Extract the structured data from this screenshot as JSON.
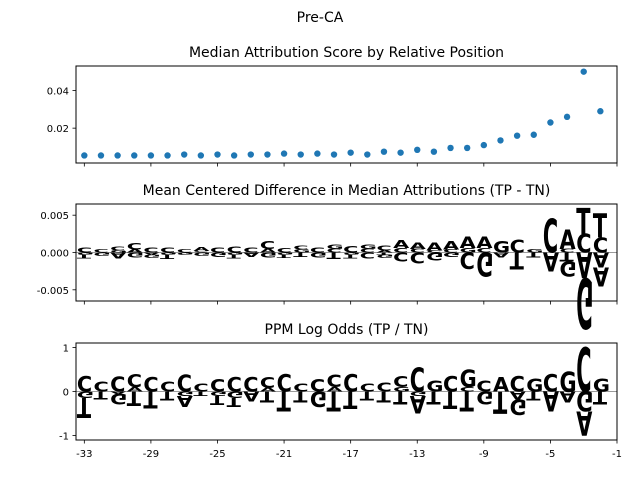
{
  "figure": {
    "suptitle": "Pre-CA"
  },
  "colors": {
    "A": "#008000",
    "C": "#0000ff",
    "G": "#ffa500",
    "T": "#ff0000",
    "dots": "#1f77b4"
  },
  "chart_data": [
    {
      "type": "scatter",
      "title": "Median Attribution Score by Relative Position",
      "x": [
        -33,
        -32,
        -31,
        -30,
        -29,
        -28,
        -27,
        -26,
        -25,
        -24,
        -23,
        -22,
        -21,
        -20,
        -19,
        -18,
        -17,
        -16,
        -15,
        -14,
        -13,
        -12,
        -11,
        -10,
        -9,
        -8,
        -7,
        -6,
        -5,
        -4,
        -3,
        -2
      ],
      "y": [
        0.0055,
        0.0055,
        0.0055,
        0.0055,
        0.0055,
        0.0055,
        0.006,
        0.0055,
        0.006,
        0.0055,
        0.006,
        0.006,
        0.0065,
        0.006,
        0.0065,
        0.006,
        0.007,
        0.006,
        0.0075,
        0.007,
        0.0085,
        0.0075,
        0.0095,
        0.0095,
        0.011,
        0.0135,
        0.016,
        0.0165,
        0.023,
        0.026,
        0.05,
        0.029
      ],
      "ylim": [
        0.0015,
        0.053
      ],
      "yticks": [
        "0.02",
        "0.04"
      ]
    },
    {
      "type": "sequence-logo",
      "title": "Mean Centered Difference in Median Attributions (TP - TN)",
      "ylim": [
        -0.0065,
        0.0065
      ],
      "yticks": [
        "0.005",
        "0.000",
        "-0.005"
      ],
      "positions": [
        {
          "x": -33,
          "letters": [
            {
              "b": "C",
              "h": 0.0007
            },
            {
              "b": "G",
              "h": -0.0003
            },
            {
              "b": "T",
              "h": -0.0005
            }
          ]
        },
        {
          "x": -32,
          "letters": [
            {
              "b": "C",
              "h": 0.0004
            },
            {
              "b": "G",
              "h": -0.0004
            }
          ]
        },
        {
          "x": -31,
          "letters": [
            {
              "b": "C",
              "h": 0.0005
            },
            {
              "b": "G",
              "h": 0.0003
            },
            {
              "b": "A",
              "h": -0.0008
            }
          ]
        },
        {
          "x": -30,
          "letters": [
            {
              "b": "C",
              "h": 0.0009
            },
            {
              "b": "A",
              "h": 0.0004
            },
            {
              "b": "G",
              "h": -0.0007
            }
          ]
        },
        {
          "x": -29,
          "letters": [
            {
              "b": "C",
              "h": 0.0007
            },
            {
              "b": "A",
              "h": -0.0003
            },
            {
              "b": "G",
              "h": -0.0004
            }
          ]
        },
        {
          "x": -28,
          "letters": [
            {
              "b": "C",
              "h": 0.0007
            },
            {
              "b": "G",
              "h": -0.0003
            },
            {
              "b": "T",
              "h": -0.0006
            }
          ]
        },
        {
          "x": -27,
          "letters": [
            {
              "b": "C",
              "h": 0.0004
            },
            {
              "b": "G",
              "h": -0.0003
            }
          ]
        },
        {
          "x": -26,
          "letters": [
            {
              "b": "A",
              "h": 0.0005
            },
            {
              "b": "C",
              "h": 0.0002
            },
            {
              "b": "G",
              "h": -0.0004
            }
          ]
        },
        {
          "x": -25,
          "letters": [
            {
              "b": "C",
              "h": 0.0007
            },
            {
              "b": "G",
              "h": -0.0006
            }
          ]
        },
        {
          "x": -24,
          "letters": [
            {
              "b": "C",
              "h": 0.0008
            },
            {
              "b": "G",
              "h": -0.0003
            },
            {
              "b": "T",
              "h": -0.0005
            }
          ]
        },
        {
          "x": -23,
          "letters": [
            {
              "b": "C",
              "h": 0.0007
            },
            {
              "b": "A",
              "h": -0.0006
            }
          ]
        },
        {
          "x": -22,
          "letters": [
            {
              "b": "C",
              "h": 0.001
            },
            {
              "b": "A",
              "h": 0.0005
            },
            {
              "b": "G",
              "h": -0.0007
            }
          ]
        },
        {
          "x": -21,
          "letters": [
            {
              "b": "C",
              "h": 0.0006
            },
            {
              "b": "G",
              "h": -0.0003
            },
            {
              "b": "T",
              "h": -0.0004
            }
          ]
        },
        {
          "x": -20,
          "letters": [
            {
              "b": "C",
              "h": 0.0005
            },
            {
              "b": "G",
              "h": 0.0004
            },
            {
              "b": "T",
              "h": -0.0006
            }
          ]
        },
        {
          "x": -19,
          "letters": [
            {
              "b": "C",
              "h": 0.0007
            },
            {
              "b": "G",
              "h": -0.0007
            }
          ]
        },
        {
          "x": -18,
          "letters": [
            {
              "b": "G",
              "h": 0.0006
            },
            {
              "b": "C",
              "h": 0.0005
            },
            {
              "b": "T",
              "h": -0.0009
            }
          ]
        },
        {
          "x": -17,
          "letters": [
            {
              "b": "C",
              "h": 0.0009
            },
            {
              "b": "G",
              "h": -0.0003
            },
            {
              "b": "T",
              "h": -0.0005
            }
          ]
        },
        {
          "x": -16,
          "letters": [
            {
              "b": "G",
              "h": 0.0006
            },
            {
              "b": "C",
              "h": 0.0005
            },
            {
              "b": "C",
              "h": -0.0008
            }
          ]
        },
        {
          "x": -15,
          "letters": [
            {
              "b": "C",
              "h": 0.0007
            },
            {
              "b": "A",
              "h": 0.0003
            },
            {
              "b": "G",
              "h": -0.0004
            },
            {
              "b": "T",
              "h": -0.0003
            }
          ]
        },
        {
          "x": -14,
          "letters": [
            {
              "b": "A",
              "h": 0.001
            },
            {
              "b": "C",
              "h": 0.0006
            },
            {
              "b": "C",
              "h": -0.0012
            }
          ]
        },
        {
          "x": -13,
          "letters": [
            {
              "b": "A",
              "h": 0.0009
            },
            {
              "b": "C",
              "h": 0.0005
            },
            {
              "b": "C",
              "h": -0.0015
            }
          ]
        },
        {
          "x": -12,
          "letters": [
            {
              "b": "A",
              "h": 0.001
            },
            {
              "b": "C",
              "h": 0.0003
            },
            {
              "b": "G",
              "h": -0.001
            }
          ]
        },
        {
          "x": -11,
          "letters": [
            {
              "b": "A",
              "h": 0.0011
            },
            {
              "b": "C",
              "h": 0.0004
            },
            {
              "b": "G",
              "h": -0.0006
            }
          ]
        },
        {
          "x": -10,
          "letters": [
            {
              "b": "A",
              "h": 0.0016
            },
            {
              "b": "G",
              "h": 0.0006
            },
            {
              "b": "C",
              "h": -0.0022
            }
          ]
        },
        {
          "x": -9,
          "letters": [
            {
              "b": "A",
              "h": 0.0016
            },
            {
              "b": "C",
              "h": 0.0006
            },
            {
              "b": "G",
              "h": -0.0032
            }
          ]
        },
        {
          "x": -8,
          "letters": [
            {
              "b": "G",
              "h": 0.0016
            },
            {
              "b": "A",
              "h": -0.0007
            }
          ]
        },
        {
          "x": -7,
          "letters": [
            {
              "b": "C",
              "h": 0.0017
            },
            {
              "b": "T",
              "h": -0.0023
            }
          ]
        },
        {
          "x": -6,
          "letters": [
            {
              "b": "G",
              "h": 0.0004
            },
            {
              "b": "T",
              "h": -0.0007
            }
          ]
        },
        {
          "x": -5,
          "letters": [
            {
              "b": "C",
              "h": 0.0045
            },
            {
              "b": "A",
              "h": -0.0025
            }
          ]
        },
        {
          "x": -4,
          "letters": [
            {
              "b": "A",
              "h": 0.0026
            },
            {
              "b": "C",
              "h": 0.0005
            },
            {
              "b": "G",
              "h": -0.002
            },
            {
              "b": "T",
              "h": -0.0012
            }
          ]
        },
        {
          "x": -3,
          "letters": [
            {
              "b": "T",
              "h": 0.0035
            },
            {
              "b": "C",
              "h": 0.0025
            },
            {
              "b": "A",
              "h": -0.0035
            },
            {
              "b": "G",
              "h": -0.0068
            }
          ]
        },
        {
          "x": -2,
          "letters": [
            {
              "b": "T",
              "h": 0.0032
            },
            {
              "b": "C",
              "h": 0.002
            },
            {
              "b": "A",
              "h": -0.002
            },
            {
              "b": "A",
              "h": -0.0025
            }
          ]
        }
      ]
    },
    {
      "type": "sequence-logo",
      "title": "PPM Log Odds (TP / TN)",
      "ylim": [
        -1.1,
        1.1
      ],
      "yticks": [
        "1",
        "0",
        "-1"
      ],
      "xticks": [
        "-33",
        "-29",
        "-25",
        "-21",
        "-17",
        "-13",
        "-9",
        "-5",
        "-1"
      ],
      "positions": [
        {
          "x": -33,
          "letters": [
            {
              "b": "C",
              "h": 0.35
            },
            {
              "b": "G",
              "h": -0.15
            },
            {
              "b": "T",
              "h": -0.45
            }
          ]
        },
        {
          "x": -32,
          "letters": [
            {
              "b": "C",
              "h": 0.22
            },
            {
              "b": "T",
              "h": -0.18
            }
          ]
        },
        {
          "x": -31,
          "letters": [
            {
              "b": "C",
              "h": 0.34
            },
            {
              "b": "G",
              "h": -0.25
            },
            {
              "b": "A",
              "h": -0.05
            }
          ]
        },
        {
          "x": -30,
          "letters": [
            {
              "b": "C",
              "h": 0.3
            },
            {
              "b": "A",
              "h": 0.1
            },
            {
              "b": "T",
              "h": -0.33
            }
          ]
        },
        {
          "x": -29,
          "letters": [
            {
              "b": "C",
              "h": 0.33
            },
            {
              "b": "T",
              "h": -0.38
            }
          ]
        },
        {
          "x": -28,
          "letters": [
            {
              "b": "C",
              "h": 0.22
            },
            {
              "b": "T",
              "h": -0.2
            }
          ]
        },
        {
          "x": -27,
          "letters": [
            {
              "b": "C",
              "h": 0.38
            },
            {
              "b": "G",
              "h": -0.1
            },
            {
              "b": "A",
              "h": -0.25
            }
          ]
        },
        {
          "x": -26,
          "letters": [
            {
              "b": "C",
              "h": 0.17
            },
            {
              "b": "T",
              "h": -0.1
            }
          ]
        },
        {
          "x": -25,
          "letters": [
            {
              "b": "C",
              "h": 0.28
            },
            {
              "b": "G",
              "h": -0.1
            },
            {
              "b": "T",
              "h": -0.2
            }
          ]
        },
        {
          "x": -24,
          "letters": [
            {
              "b": "C",
              "h": 0.33
            },
            {
              "b": "G",
              "h": -0.15
            },
            {
              "b": "T",
              "h": -0.2
            }
          ]
        },
        {
          "x": -23,
          "letters": [
            {
              "b": "C",
              "h": 0.32
            },
            {
              "b": "A",
              "h": -0.22
            }
          ]
        },
        {
          "x": -22,
          "letters": [
            {
              "b": "C",
              "h": 0.25
            },
            {
              "b": "A",
              "h": 0.08
            },
            {
              "b": "T",
              "h": -0.25
            }
          ]
        },
        {
          "x": -21,
          "letters": [
            {
              "b": "C",
              "h": 0.4
            },
            {
              "b": "T",
              "h": -0.45
            }
          ]
        },
        {
          "x": -20,
          "letters": [
            {
              "b": "C",
              "h": 0.17
            },
            {
              "b": "T",
              "h": -0.25
            }
          ]
        },
        {
          "x": -19,
          "letters": [
            {
              "b": "C",
              "h": 0.28
            },
            {
              "b": "G",
              "h": -0.35
            }
          ]
        },
        {
          "x": -18,
          "letters": [
            {
              "b": "C",
              "h": 0.28
            },
            {
              "b": "A",
              "h": 0.1
            },
            {
              "b": "T",
              "h": -0.45
            }
          ]
        },
        {
          "x": -17,
          "letters": [
            {
              "b": "C",
              "h": 0.4
            },
            {
              "b": "T",
              "h": -0.4
            }
          ]
        },
        {
          "x": -16,
          "letters": [
            {
              "b": "C",
              "h": 0.17
            },
            {
              "b": "T",
              "h": -0.2
            }
          ]
        },
        {
          "x": -15,
          "letters": [
            {
              "b": "C",
              "h": 0.2
            },
            {
              "b": "T",
              "h": -0.25
            }
          ]
        },
        {
          "x": -14,
          "letters": [
            {
              "b": "C",
              "h": 0.25
            },
            {
              "b": "G",
              "h": 0.1
            },
            {
              "b": "T",
              "h": -0.3
            }
          ]
        },
        {
          "x": -13,
          "letters": [
            {
              "b": "C",
              "h": 0.55
            },
            {
              "b": "G",
              "h": -0.1
            },
            {
              "b": "A",
              "h": -0.4
            }
          ]
        },
        {
          "x": -12,
          "letters": [
            {
              "b": "G",
              "h": 0.25
            },
            {
              "b": "T",
              "h": -0.3
            }
          ]
        },
        {
          "x": -11,
          "letters": [
            {
              "b": "C",
              "h": 0.35
            },
            {
              "b": "T",
              "h": -0.4
            }
          ]
        },
        {
          "x": -10,
          "letters": [
            {
              "b": "G",
              "h": 0.4
            },
            {
              "b": "C",
              "h": 0.1
            },
            {
              "b": "T",
              "h": -0.45
            }
          ]
        },
        {
          "x": -9,
          "letters": [
            {
              "b": "C",
              "h": 0.25
            },
            {
              "b": "G",
              "h": -0.3
            }
          ]
        },
        {
          "x": -8,
          "letters": [
            {
              "b": "A",
              "h": 0.33
            },
            {
              "b": "T",
              "h": -0.5
            }
          ]
        },
        {
          "x": -7,
          "letters": [
            {
              "b": "C",
              "h": 0.35
            },
            {
              "b": "A",
              "h": -0.18
            },
            {
              "b": "G",
              "h": -0.35
            }
          ]
        },
        {
          "x": -6,
          "letters": [
            {
              "b": "G",
              "h": 0.3
            },
            {
              "b": "T",
              "h": -0.2
            }
          ]
        },
        {
          "x": -5,
          "letters": [
            {
              "b": "C",
              "h": 0.4
            },
            {
              "b": "A",
              "h": -0.45
            }
          ]
        },
        {
          "x": -4,
          "letters": [
            {
              "b": "G",
              "h": 0.45
            },
            {
              "b": "A",
              "h": -0.25
            }
          ]
        },
        {
          "x": -3,
          "letters": [
            {
              "b": "C",
              "h": 1.0
            },
            {
              "b": "G",
              "h": -0.45
            },
            {
              "b": "A",
              "h": -0.55
            }
          ]
        },
        {
          "x": -2,
          "letters": [
            {
              "b": "G",
              "h": 0.3
            },
            {
              "b": "T",
              "h": -0.3
            }
          ]
        }
      ]
    }
  ]
}
